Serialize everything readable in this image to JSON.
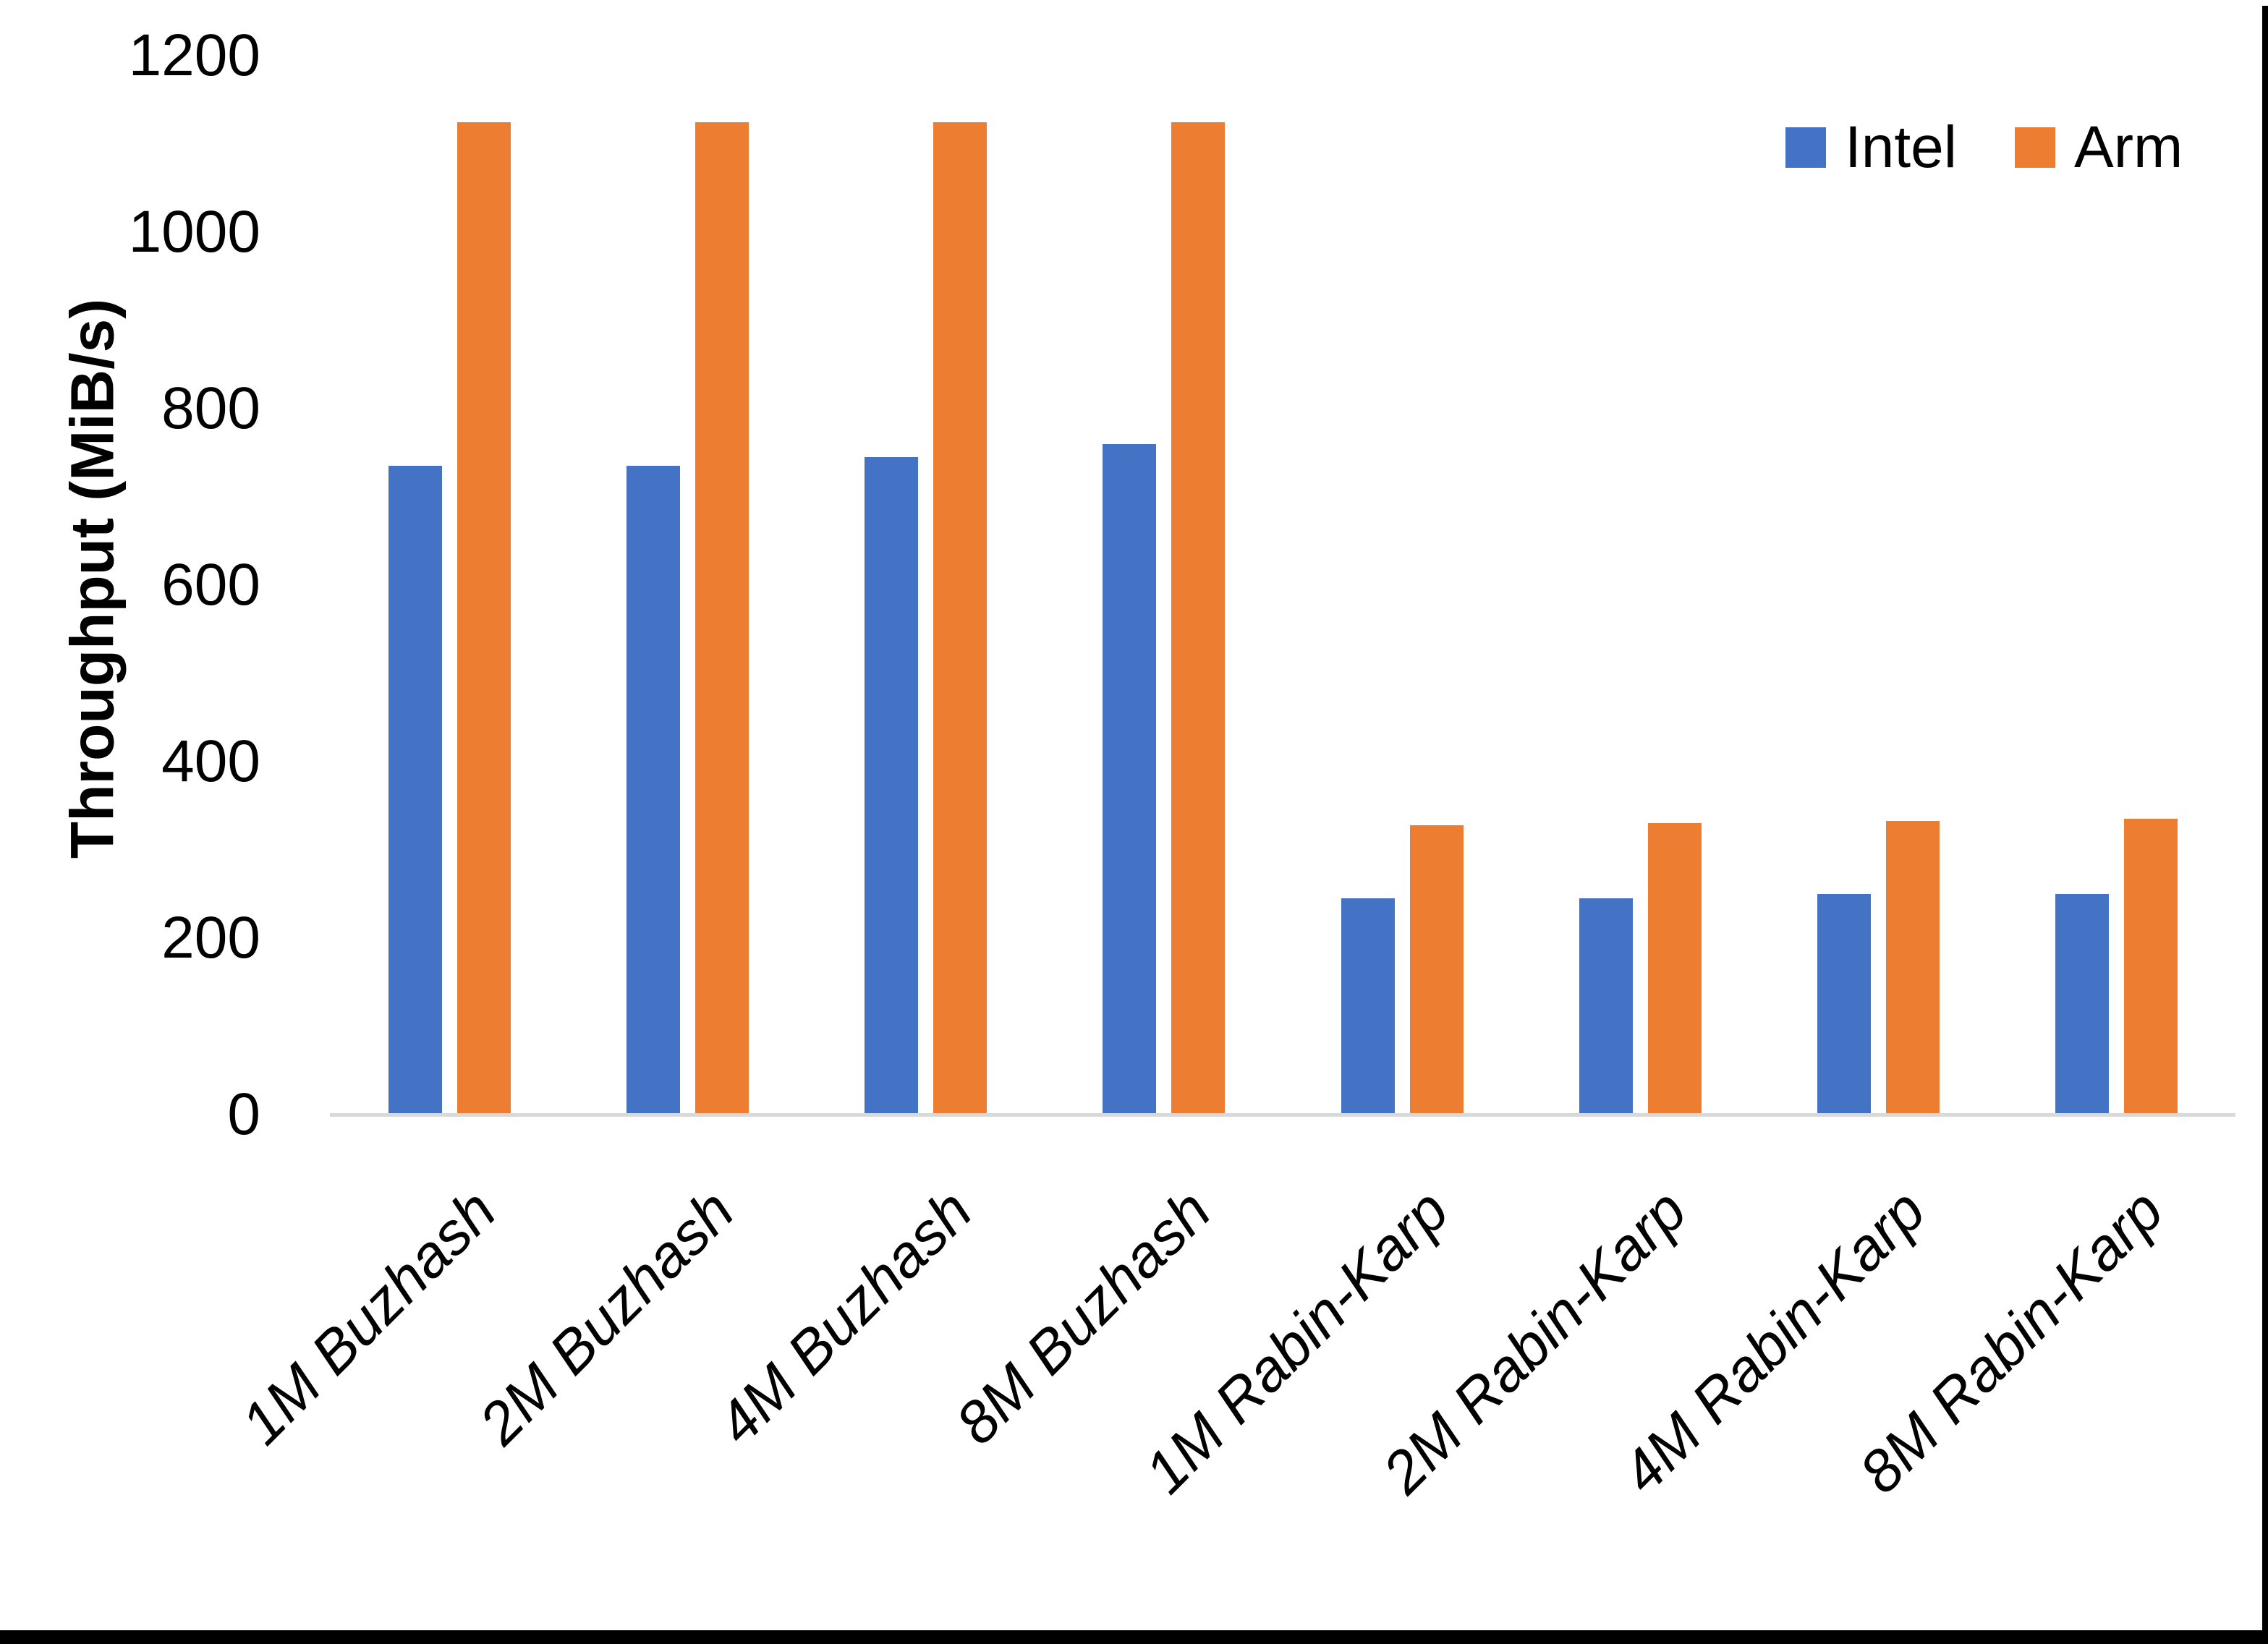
{
  "chart_data": {
    "type": "bar",
    "title": "",
    "ylabel": "Throughput (MiB/s)",
    "xlabel": "",
    "ylim": [
      0,
      1200
    ],
    "ytick_interval": 200,
    "yticks": [
      0,
      200,
      400,
      600,
      800,
      1000,
      1200
    ],
    "categories": [
      "1M Buzhash",
      "2M Buzhash",
      "4M Buzhash",
      "8M Buzhash",
      "1M Rabin-Karp",
      "2M Rabin-Karp",
      "4M Rabin-Karp",
      "8M Rabin-Karp"
    ],
    "series": [
      {
        "name": "Intel",
        "color": "#4472C4",
        "values": [
          735,
          735,
          745,
          760,
          245,
          245,
          250,
          250
        ]
      },
      {
        "name": "Arm",
        "color": "#ED7D31",
        "values": [
          1125,
          1125,
          1125,
          1125,
          328,
          330,
          333,
          335
        ]
      }
    ],
    "legend_position": "top-right",
    "grid": false,
    "axis_line_color": "#D9D9D9",
    "text_color": "#000000",
    "background_color": "#FFFFFF"
  }
}
